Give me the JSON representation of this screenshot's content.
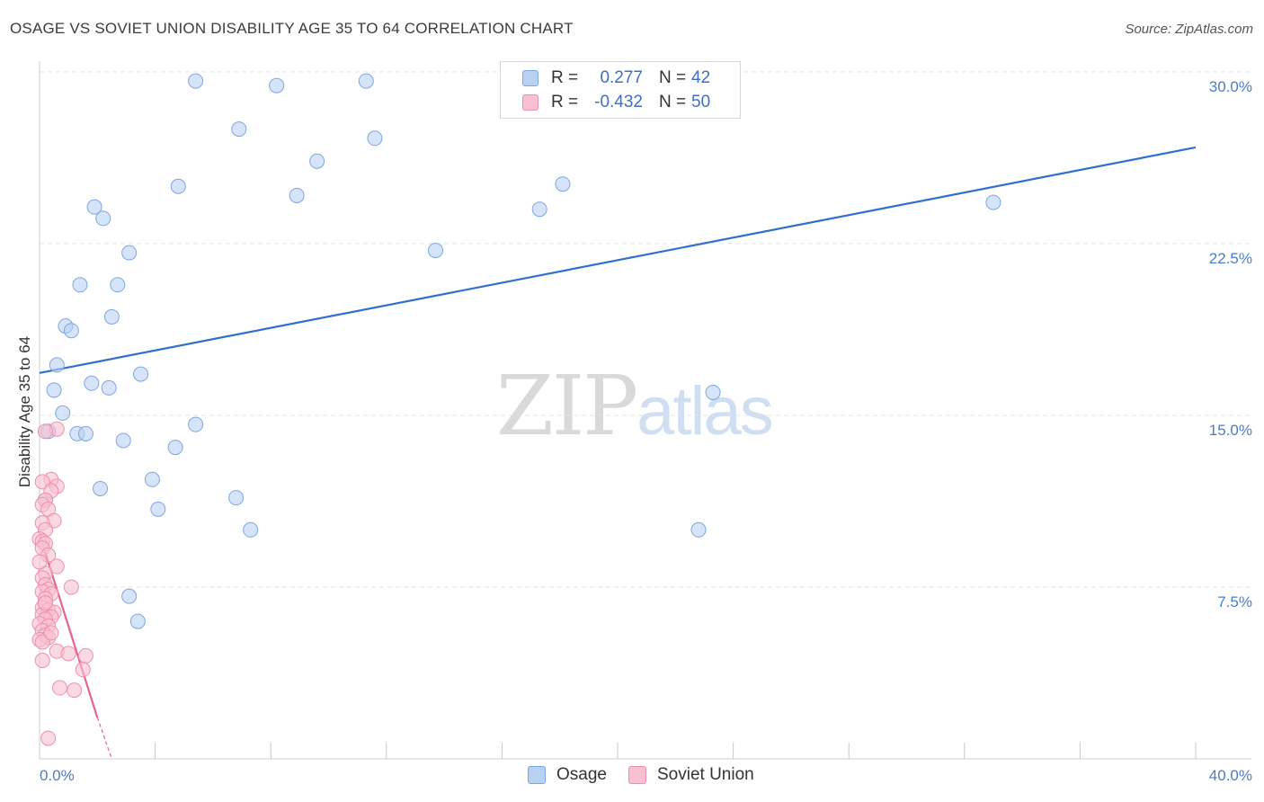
{
  "header": {
    "title": "OSAGE VS SOVIET UNION DISABILITY AGE 35 TO 64 CORRELATION CHART",
    "source": "Source: ZipAtlas.com"
  },
  "watermark": {
    "zip": "ZIP",
    "atlas": "atlas"
  },
  "legend": {
    "rows": [
      {
        "r_label": "R =",
        "r_value": "0.277",
        "n_label": "N =",
        "n_value": "42"
      },
      {
        "r_label": "R =",
        "r_value": "-0.432",
        "n_label": "N =",
        "n_value": "50"
      }
    ]
  },
  "bottom_legend": {
    "osage": "Osage",
    "soviet": "Soviet Union"
  },
  "axes": {
    "ylabel": "Disability Age 35 to 64",
    "y_ticks": [
      "30.0%",
      "22.5%",
      "15.0%",
      "7.5%"
    ],
    "x_min_label": "0.0%",
    "x_max_label": "40.0%"
  },
  "colors": {
    "osage_fill": "#b9d2f3",
    "osage_stroke": "#7ea6e0",
    "osage_line": "#2f6fce",
    "soviet_fill": "#f8c0d0",
    "soviet_stroke": "#ee8fac",
    "soviet_line": "#e5638e",
    "tick_text": "#4a7dc9",
    "grid": "#e3e3e3"
  },
  "chart_data": {
    "type": "scatter",
    "xlabel": "",
    "ylabel": "Disability Age 35 to 64",
    "xlim": [
      0,
      40
    ],
    "ylim": [
      0,
      30.7
    ],
    "x_unit": "%",
    "y_unit": "%",
    "y_ticks": [
      7.5,
      15.0,
      22.5,
      30.0
    ],
    "grid": true,
    "legend_position": "top-center",
    "series": [
      {
        "name": "Osage",
        "color": "#b9d2f3",
        "points": [
          [
            5.4,
            29.6
          ],
          [
            8.2,
            29.4
          ],
          [
            11.3,
            29.6
          ],
          [
            6.9,
            27.5
          ],
          [
            11.6,
            27.1
          ],
          [
            9.6,
            26.1
          ],
          [
            4.8,
            25.0
          ],
          [
            8.9,
            24.6
          ],
          [
            18.1,
            25.1
          ],
          [
            17.3,
            24.0
          ],
          [
            1.9,
            24.1
          ],
          [
            2.2,
            23.6
          ],
          [
            3.1,
            22.1
          ],
          [
            13.7,
            22.2
          ],
          [
            33.0,
            24.3
          ],
          [
            1.4,
            20.7
          ],
          [
            2.7,
            20.7
          ],
          [
            2.5,
            19.3
          ],
          [
            0.9,
            18.9
          ],
          [
            1.1,
            18.7
          ],
          [
            0.6,
            17.2
          ],
          [
            3.5,
            16.8
          ],
          [
            1.8,
            16.4
          ],
          [
            2.4,
            16.2
          ],
          [
            0.5,
            16.1
          ],
          [
            23.3,
            16.0
          ],
          [
            0.8,
            15.1
          ],
          [
            0.3,
            14.3
          ],
          [
            1.3,
            14.2
          ],
          [
            5.4,
            14.6
          ],
          [
            1.6,
            14.2
          ],
          [
            2.9,
            13.9
          ],
          [
            4.7,
            13.6
          ],
          [
            3.9,
            12.2
          ],
          [
            2.1,
            11.8
          ],
          [
            6.8,
            11.4
          ],
          [
            4.1,
            10.9
          ],
          [
            7.3,
            10.0
          ],
          [
            22.8,
            10.0
          ],
          [
            3.1,
            7.1
          ],
          [
            3.4,
            6.0
          ],
          [
            0.2,
            11.3
          ]
        ]
      },
      {
        "name": "Soviet Union",
        "color": "#f8c0d0",
        "points": [
          [
            0.6,
            14.4
          ],
          [
            0.2,
            14.3
          ],
          [
            0.4,
            12.2
          ],
          [
            0.6,
            11.9
          ],
          [
            0.1,
            12.1
          ],
          [
            0.4,
            11.7
          ],
          [
            0.2,
            11.3
          ],
          [
            0.1,
            11.1
          ],
          [
            0.3,
            10.9
          ],
          [
            0.5,
            10.4
          ],
          [
            0.1,
            10.3
          ],
          [
            0.2,
            10.0
          ],
          [
            0.0,
            9.6
          ],
          [
            0.1,
            9.5
          ],
          [
            0.2,
            9.4
          ],
          [
            0.1,
            9.2
          ],
          [
            0.3,
            8.9
          ],
          [
            0.6,
            8.4
          ],
          [
            0.2,
            8.1
          ],
          [
            0.1,
            7.9
          ],
          [
            1.1,
            7.5
          ],
          [
            0.2,
            7.6
          ],
          [
            0.3,
            7.4
          ],
          [
            0.1,
            7.3
          ],
          [
            0.4,
            7.2
          ],
          [
            0.2,
            7.0
          ],
          [
            0.1,
            6.6
          ],
          [
            0.3,
            6.5
          ],
          [
            0.5,
            6.4
          ],
          [
            0.1,
            6.3
          ],
          [
            0.4,
            6.2
          ],
          [
            0.2,
            6.1
          ],
          [
            0.0,
            5.9
          ],
          [
            0.3,
            5.8
          ],
          [
            0.1,
            5.6
          ],
          [
            0.2,
            5.4
          ],
          [
            0.3,
            5.3
          ],
          [
            0.0,
            5.2
          ],
          [
            0.1,
            5.1
          ],
          [
            0.6,
            4.7
          ],
          [
            1.0,
            4.6
          ],
          [
            1.6,
            4.5
          ],
          [
            1.5,
            3.9
          ],
          [
            0.7,
            3.1
          ],
          [
            1.2,
            3.0
          ],
          [
            0.3,
            0.9
          ],
          [
            0.0,
            8.6
          ],
          [
            0.2,
            6.8
          ],
          [
            0.4,
            5.5
          ],
          [
            0.1,
            4.3
          ]
        ]
      }
    ],
    "trendlines": [
      {
        "series": "Osage",
        "x": [
          0,
          40
        ],
        "y": [
          16.85,
          26.7
        ]
      },
      {
        "series": "Soviet Union",
        "x": [
          0,
          2.0
        ],
        "y": [
          9.8,
          1.8
        ],
        "dashed_extension_to": [
          2.5,
          0.0
        ]
      }
    ]
  }
}
